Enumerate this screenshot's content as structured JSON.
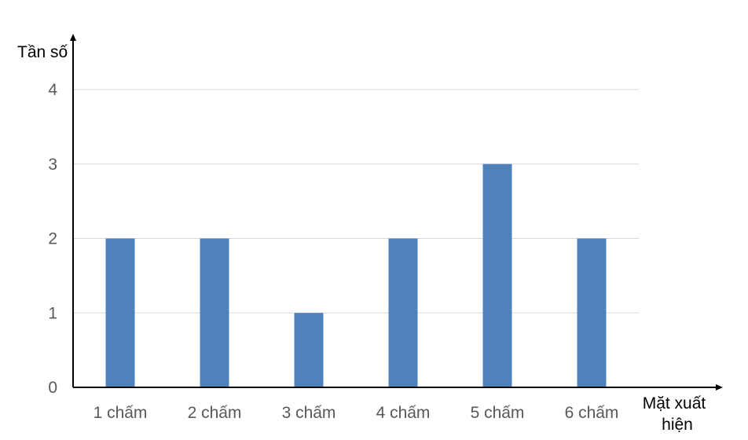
{
  "chart_data": {
    "type": "bar",
    "categories": [
      "1 chấm",
      "2 chấm",
      "3 chấm",
      "4 chấm",
      "5 chấm",
      "6 chấm"
    ],
    "values": [
      2,
      2,
      1,
      2,
      3,
      2
    ],
    "title": "",
    "xlabel_line1": "Mặt xuất",
    "xlabel_line2": "hiện",
    "ylabel": "Tần số",
    "ylim": [
      0,
      4
    ],
    "yticks": [
      "0",
      "1",
      "2",
      "3",
      "4"
    ],
    "grid": true,
    "legend": "none",
    "bar_color": "#4F81BD",
    "gridline_color": "#D9D9D9",
    "axis_color": "#000000"
  }
}
